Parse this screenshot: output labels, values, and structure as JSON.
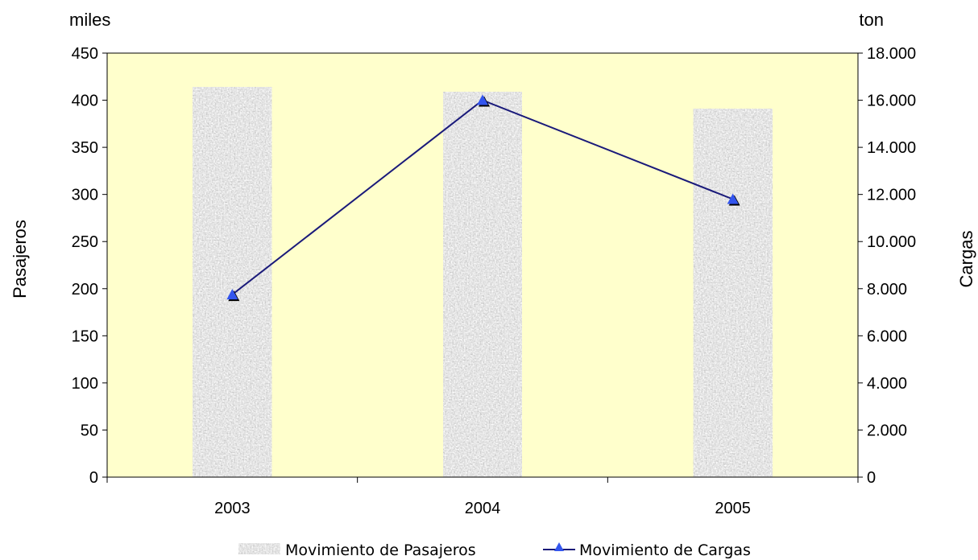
{
  "chart_data": {
    "type": "bar",
    "categories": [
      "2003",
      "2004",
      "2005"
    ],
    "series": [
      {
        "name": "Movimiento de Pasajeros",
        "type": "bar",
        "axis": "left",
        "values": [
          414,
          409,
          391
        ]
      },
      {
        "name": "Movimiento de Cargas",
        "type": "line",
        "axis": "right",
        "values": [
          7750,
          16000,
          11800
        ]
      }
    ],
    "left_axis": {
      "label": "Pasajeros",
      "unit": "miles",
      "ylim": [
        0,
        450
      ],
      "ticks": [
        "0",
        "50",
        "100",
        "150",
        "200",
        "250",
        "300",
        "350",
        "400",
        "450"
      ]
    },
    "right_axis": {
      "label": "Cargas",
      "unit": "ton",
      "ylim": [
        0,
        18000
      ],
      "ticks": [
        "0",
        "2.000",
        "4.000",
        "6.000",
        "8.000",
        "10.000",
        "12.000",
        "14.000",
        "16.000",
        "18.000"
      ]
    },
    "grid": false,
    "legend_position": "bottom",
    "colors": {
      "plot_background": "#ffffcc",
      "bar_fill": "#9a9a9a",
      "line": "#1a1a7a",
      "marker": "#3355ee"
    }
  }
}
